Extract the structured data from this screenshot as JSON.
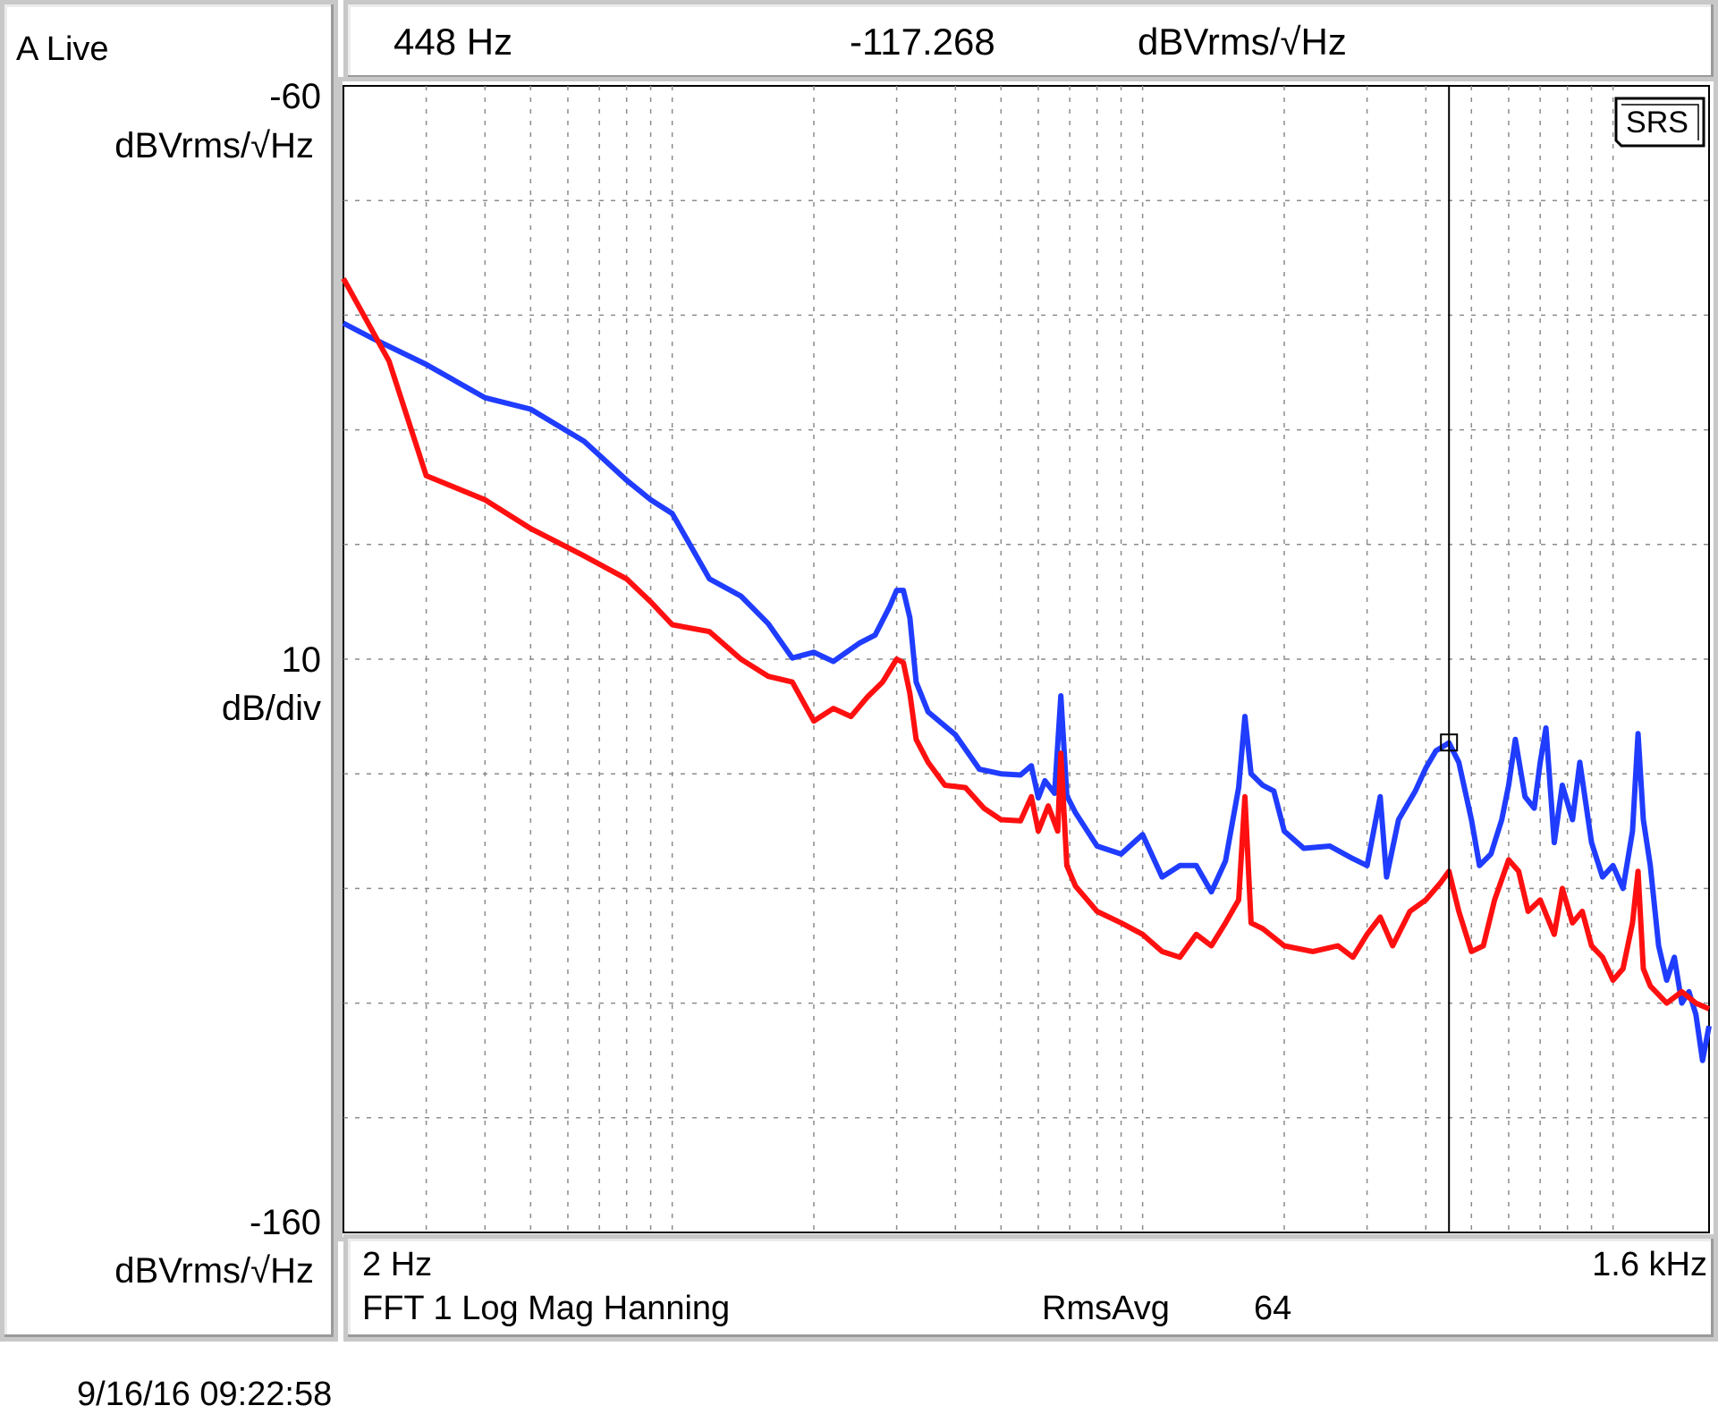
{
  "status": {
    "mode": "A Live"
  },
  "marker_readout": {
    "frequency": "448 Hz",
    "value": "-117.268",
    "unit": "dBVrms/√Hz"
  },
  "y_axis": {
    "top_value": "-60",
    "top_unit": "dBVrms/√Hz",
    "scale_value": "10",
    "scale_unit": "dB/div",
    "bottom_value": "-160",
    "bottom_unit": "dBVrms/√Hz"
  },
  "x_axis": {
    "start_label": "2 Hz",
    "stop_label": "1.6 kHz"
  },
  "measurement": {
    "description": "FFT 1 Log Mag Hanning",
    "avg_mode": "RmsAvg",
    "avg_count": "64"
  },
  "logo": {
    "text": "SRS"
  },
  "timestamp": "9/16/16  09:22:58",
  "colors": {
    "series_blue": "#1f3cff",
    "series_red": "#ff1010",
    "grid": "#8c8c8c",
    "frame": "#c8c8c8"
  },
  "chart_data": {
    "type": "line",
    "title": "",
    "xlabel": "",
    "ylabel": "dBVrms/√Hz",
    "x_scale": "log",
    "xlim": [
      2,
      1600
    ],
    "ylim": [
      -160,
      -60
    ],
    "y_div": 10,
    "grid": true,
    "marker": {
      "x": 448,
      "y": -117.268
    },
    "series": [
      {
        "color": "#1f3cff",
        "points": [
          [
            2,
            -80.7
          ],
          [
            2.3,
            -82.0
          ],
          [
            3,
            -84.3
          ],
          [
            4,
            -87.2
          ],
          [
            5,
            -88.2
          ],
          [
            6.5,
            -91.0
          ],
          [
            8,
            -94.4
          ],
          [
            9,
            -96.1
          ],
          [
            10,
            -97.3
          ],
          [
            12,
            -103.0
          ],
          [
            14,
            -104.5
          ],
          [
            16,
            -106.9
          ],
          [
            18,
            -109.9
          ],
          [
            20,
            -109.4
          ],
          [
            22,
            -110.2
          ],
          [
            25,
            -108.6
          ],
          [
            27,
            -107.9
          ],
          [
            29,
            -105.4
          ],
          [
            30,
            -104.0
          ],
          [
            31,
            -104.0
          ],
          [
            32,
            -106.4
          ],
          [
            33,
            -112.0
          ],
          [
            35,
            -114.6
          ],
          [
            40,
            -116.6
          ],
          [
            45,
            -119.6
          ],
          [
            50,
            -120.0
          ],
          [
            55,
            -120.1
          ],
          [
            58,
            -119.3
          ],
          [
            60,
            -122.1
          ],
          [
            62,
            -120.6
          ],
          [
            65,
            -121.7
          ],
          [
            67,
            -113.2
          ],
          [
            69,
            -121.9
          ],
          [
            72,
            -123.4
          ],
          [
            80,
            -126.3
          ],
          [
            90,
            -127.0
          ],
          [
            100,
            -125.3
          ],
          [
            110,
            -129.0
          ],
          [
            120,
            -128.0
          ],
          [
            130,
            -128.0
          ],
          [
            140,
            -130.3
          ],
          [
            150,
            -127.6
          ],
          [
            160,
            -121.2
          ],
          [
            165,
            -115.0
          ],
          [
            170,
            -120.0
          ],
          [
            180,
            -121.0
          ],
          [
            190,
            -121.5
          ],
          [
            200,
            -125.0
          ],
          [
            220,
            -126.5
          ],
          [
            250,
            -126.3
          ],
          [
            280,
            -127.4
          ],
          [
            300,
            -128.0
          ],
          [
            320,
            -122.0
          ],
          [
            330,
            -129.0
          ],
          [
            350,
            -124.0
          ],
          [
            380,
            -121.5
          ],
          [
            400,
            -119.5
          ],
          [
            420,
            -118.0
          ],
          [
            448,
            -117.3
          ],
          [
            470,
            -119.0
          ],
          [
            500,
            -124.0
          ],
          [
            520,
            -128.0
          ],
          [
            550,
            -127.0
          ],
          [
            580,
            -124.0
          ],
          [
            600,
            -121.0
          ],
          [
            620,
            -117.0
          ],
          [
            650,
            -122.0
          ],
          [
            680,
            -123.0
          ],
          [
            700,
            -119.0
          ],
          [
            720,
            -116.0
          ],
          [
            750,
            -126.0
          ],
          [
            780,
            -121.0
          ],
          [
            820,
            -124.0
          ],
          [
            850,
            -119.0
          ],
          [
            900,
            -126.0
          ],
          [
            950,
            -129.0
          ],
          [
            1000,
            -128.0
          ],
          [
            1050,
            -130.0
          ],
          [
            1100,
            -125.0
          ],
          [
            1130,
            -116.5
          ],
          [
            1160,
            -124.0
          ],
          [
            1200,
            -128.0
          ],
          [
            1250,
            -135.0
          ],
          [
            1300,
            -138.0
          ],
          [
            1350,
            -136.0
          ],
          [
            1400,
            -140.0
          ],
          [
            1450,
            -139.0
          ],
          [
            1500,
            -141.0
          ],
          [
            1550,
            -145.0
          ],
          [
            1600,
            -142.0
          ]
        ]
      },
      {
        "color": "#ff1010",
        "points": [
          [
            2,
            -76.8
          ],
          [
            2.5,
            -84.0
          ],
          [
            3,
            -94.0
          ],
          [
            4,
            -96.1
          ],
          [
            5,
            -98.6
          ],
          [
            6.5,
            -101.0
          ],
          [
            8,
            -103.0
          ],
          [
            9,
            -105.0
          ],
          [
            10,
            -107.0
          ],
          [
            12,
            -107.6
          ],
          [
            14,
            -110.0
          ],
          [
            16,
            -111.5
          ],
          [
            18,
            -112.0
          ],
          [
            20,
            -115.4
          ],
          [
            22,
            -114.3
          ],
          [
            24,
            -115.0
          ],
          [
            26,
            -113.3
          ],
          [
            28,
            -112.0
          ],
          [
            30,
            -110.0
          ],
          [
            31,
            -110.3
          ],
          [
            32,
            -113.0
          ],
          [
            33,
            -117.0
          ],
          [
            35,
            -119.0
          ],
          [
            38,
            -121.0
          ],
          [
            42,
            -121.2
          ],
          [
            46,
            -123.0
          ],
          [
            50,
            -124.0
          ],
          [
            55,
            -124.1
          ],
          [
            58,
            -122.0
          ],
          [
            60,
            -125.0
          ],
          [
            63,
            -122.8
          ],
          [
            66,
            -125.0
          ],
          [
            67,
            -118.2
          ],
          [
            69,
            -128.0
          ],
          [
            72,
            -129.8
          ],
          [
            80,
            -132.0
          ],
          [
            90,
            -133.0
          ],
          [
            100,
            -134.0
          ],
          [
            110,
            -135.5
          ],
          [
            120,
            -136.0
          ],
          [
            130,
            -134.0
          ],
          [
            140,
            -135.0
          ],
          [
            150,
            -133.0
          ],
          [
            160,
            -131.0
          ],
          [
            165,
            -122.0
          ],
          [
            170,
            -133.0
          ],
          [
            180,
            -133.5
          ],
          [
            200,
            -135.0
          ],
          [
            230,
            -135.5
          ],
          [
            260,
            -135.0
          ],
          [
            280,
            -136.0
          ],
          [
            300,
            -134.0
          ],
          [
            320,
            -132.5
          ],
          [
            340,
            -135.0
          ],
          [
            370,
            -132.0
          ],
          [
            400,
            -131.0
          ],
          [
            430,
            -129.5
          ],
          [
            448,
            -128.5
          ],
          [
            470,
            -132.0
          ],
          [
            500,
            -135.5
          ],
          [
            530,
            -135.0
          ],
          [
            560,
            -131.0
          ],
          [
            600,
            -127.5
          ],
          [
            630,
            -128.5
          ],
          [
            660,
            -132.0
          ],
          [
            700,
            -131.0
          ],
          [
            750,
            -134.0
          ],
          [
            780,
            -130.0
          ],
          [
            820,
            -133.0
          ],
          [
            860,
            -132.0
          ],
          [
            900,
            -135.0
          ],
          [
            950,
            -136.0
          ],
          [
            1000,
            -138.0
          ],
          [
            1050,
            -137.0
          ],
          [
            1100,
            -133.0
          ],
          [
            1130,
            -128.5
          ],
          [
            1160,
            -137.0
          ],
          [
            1200,
            -138.5
          ],
          [
            1300,
            -140.0
          ],
          [
            1400,
            -139.0
          ],
          [
            1500,
            -140.0
          ],
          [
            1600,
            -140.5
          ]
        ]
      }
    ]
  }
}
